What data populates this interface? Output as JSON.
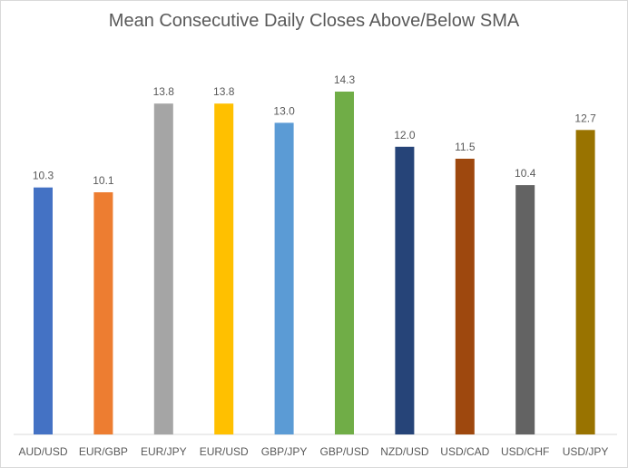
{
  "chart_data": {
    "type": "bar",
    "title": "Mean Consecutive Daily Closes Above/Below SMA",
    "xlabel": "",
    "ylabel": "",
    "categories": [
      "AUD/USD",
      "EUR/GBP",
      "EUR/JPY",
      "EUR/USD",
      "GBP/JPY",
      "GBP/USD",
      "NZD/USD",
      "USD/CAD",
      "USD/CHF",
      "USD/JPY"
    ],
    "values": [
      10.3,
      10.1,
      13.8,
      13.8,
      13.0,
      14.3,
      12.0,
      11.5,
      10.4,
      12.7
    ],
    "value_labels": [
      "10.3",
      "10.1",
      "13.8",
      "13.8",
      "13.0",
      "14.3",
      "12.0",
      "11.5",
      "10.4",
      "12.7"
    ],
    "colors": [
      "#4472c4",
      "#ed7d31",
      "#a5a5a5",
      "#ffc000",
      "#5b9bd5",
      "#70ad47",
      "#264478",
      "#9e480e",
      "#636363",
      "#997300"
    ],
    "ylim": [
      0,
      14.3
    ],
    "grid": false,
    "legend": "none"
  }
}
